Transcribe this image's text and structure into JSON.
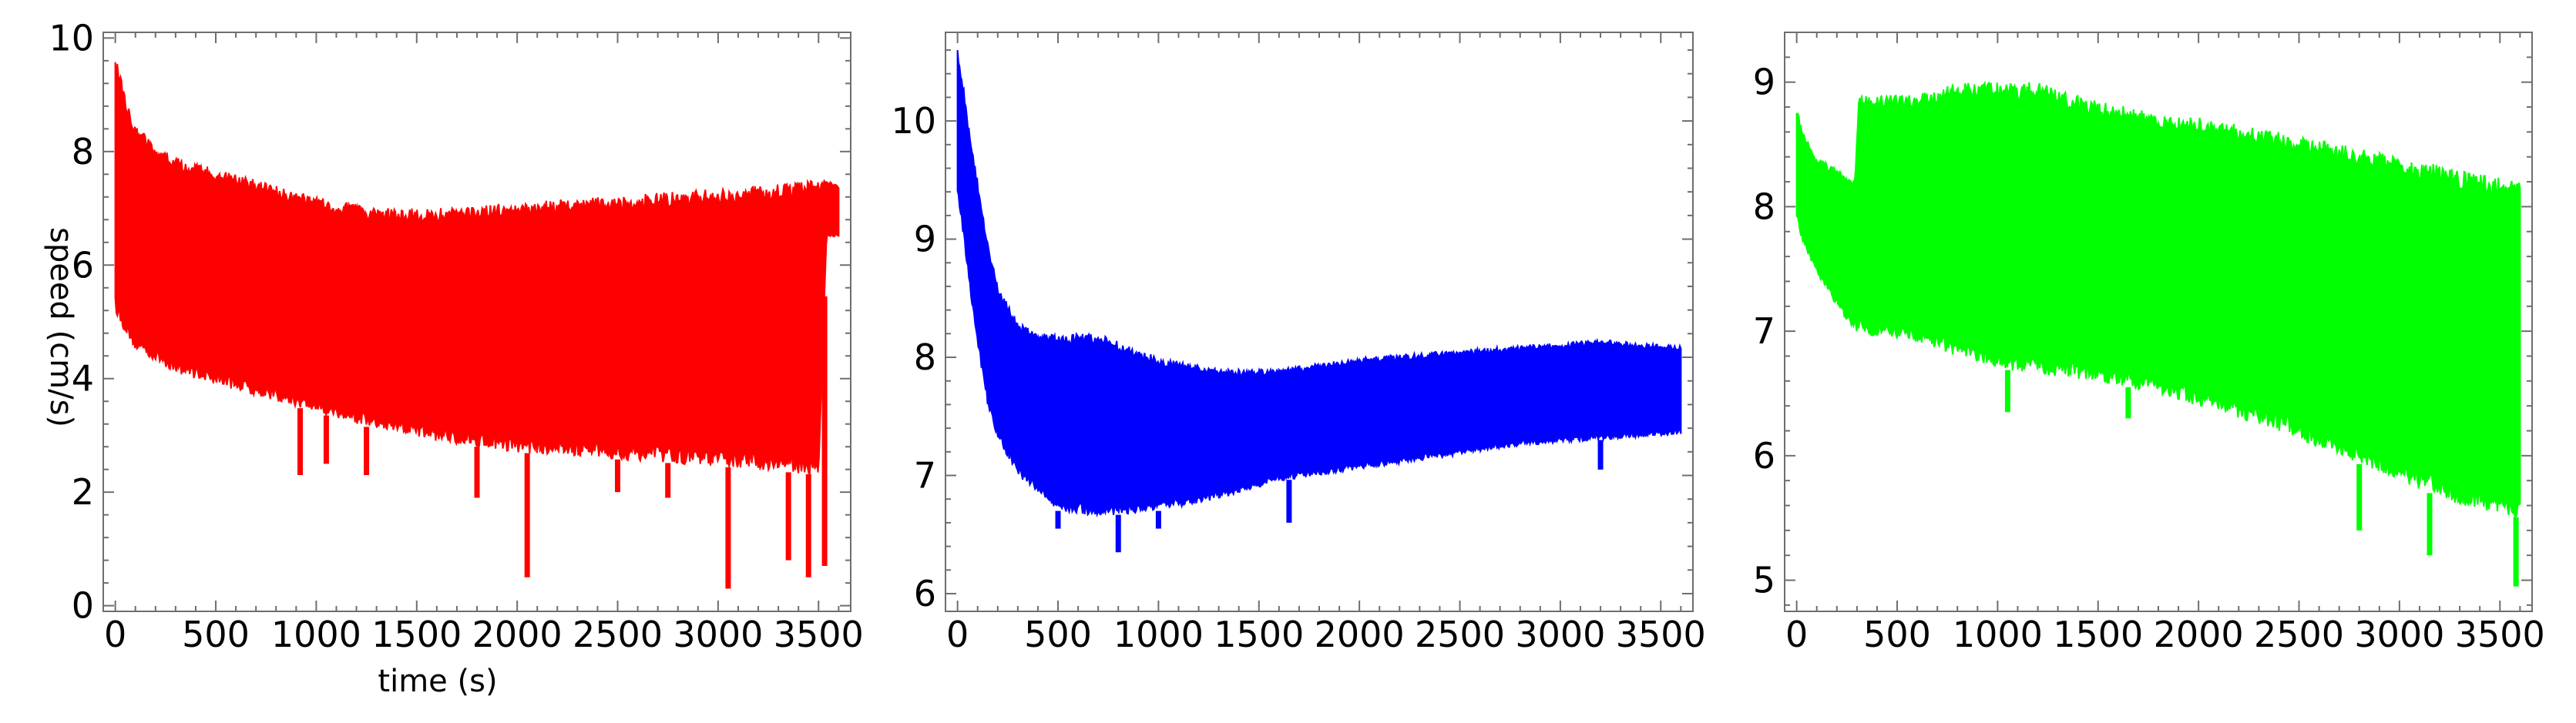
{
  "chart_data": [
    {
      "type": "area",
      "title": "",
      "xlabel": "time (s)",
      "ylabel": "speed (cm/s)",
      "xlim": [
        -60,
        3660
      ],
      "ylim": [
        -0.1,
        10.1
      ],
      "xticks": [
        0,
        500,
        1000,
        1500,
        2000,
        2500,
        3000,
        3500
      ],
      "yticks": [
        0,
        2,
        4,
        6,
        8,
        10
      ],
      "grid": false,
      "series": [
        {
          "color": "#ff0000",
          "x": [
            0,
            20,
            50,
            100,
            200,
            300,
            500,
            700,
            1000,
            1300,
            1600,
            2000,
            2400,
            2800,
            3200,
            3500,
            3540,
            3600
          ],
          "upper": [
            9.6,
            9.5,
            9.0,
            8.5,
            8.1,
            7.9,
            7.7,
            7.5,
            7.2,
            7.0,
            7.0,
            7.1,
            7.2,
            7.3,
            7.4,
            7.5,
            7.5,
            7.4
          ],
          "lower": [
            5.2,
            5.0,
            4.8,
            4.5,
            4.3,
            4.1,
            3.9,
            3.7,
            3.4,
            3.1,
            2.9,
            2.7,
            2.6,
            2.5,
            2.4,
            2.3,
            6.5,
            6.5
          ],
          "dips": [
            [
              920,
              2.3
            ],
            [
              1050,
              2.5
            ],
            [
              1250,
              2.3
            ],
            [
              1800,
              1.9
            ],
            [
              2050,
              0.5
            ],
            [
              2500,
              2.0
            ],
            [
              2750,
              1.9
            ],
            [
              3050,
              0.3
            ],
            [
              3350,
              0.8
            ],
            [
              3450,
              0.5
            ],
            [
              3530,
              0.7
            ]
          ]
        }
      ]
    },
    {
      "type": "area",
      "title": "",
      "xlabel": "",
      "ylabel": "",
      "xlim": [
        -60,
        3660
      ],
      "ylim": [
        5.85,
        10.75
      ],
      "xticks": [
        0,
        500,
        1000,
        1500,
        2000,
        2500,
        3000,
        3500
      ],
      "yticks": [
        6,
        7,
        8,
        9,
        10
      ],
      "grid": false,
      "series": [
        {
          "color": "#0000ff",
          "x": [
            0,
            30,
            60,
            100,
            150,
            200,
            300,
            400,
            500,
            700,
            1000,
            1300,
            1600,
            2000,
            2400,
            2800,
            3200,
            3600
          ],
          "upper": [
            10.6,
            10.3,
            9.9,
            9.5,
            9.0,
            8.6,
            8.3,
            8.2,
            8.2,
            8.2,
            8.0,
            7.9,
            7.9,
            8.0,
            8.05,
            8.1,
            8.15,
            8.1
          ],
          "lower": [
            9.4,
            9.0,
            8.6,
            8.1,
            7.6,
            7.3,
            7.0,
            6.85,
            6.7,
            6.65,
            6.7,
            6.8,
            6.95,
            7.05,
            7.15,
            7.25,
            7.3,
            7.35
          ],
          "dips": [
            [
              500,
              6.55
            ],
            [
              800,
              6.35
            ],
            [
              1000,
              6.55
            ],
            [
              1650,
              6.6
            ],
            [
              3200,
              7.05
            ]
          ]
        }
      ]
    },
    {
      "type": "area",
      "title": "",
      "xlabel": "",
      "ylabel": "",
      "xlim": [
        -60,
        3660
      ],
      "ylim": [
        4.75,
        9.4
      ],
      "xticks": [
        0,
        500,
        1000,
        1500,
        2000,
        2500,
        3000,
        3500
      ],
      "yticks": [
        5,
        6,
        7,
        8,
        9
      ],
      "grid": false,
      "series": [
        {
          "color": "#00ff00",
          "x": [
            0,
            30,
            100,
            200,
            290,
            310,
            400,
            600,
            800,
            1000,
            1200,
            1500,
            1800,
            2100,
            2400,
            2700,
            3000,
            3300,
            3600
          ],
          "upper": [
            8.8,
            8.6,
            8.4,
            8.3,
            8.2,
            8.9,
            8.9,
            8.9,
            9.0,
            9.0,
            9.0,
            8.85,
            8.75,
            8.7,
            8.6,
            8.5,
            8.4,
            8.3,
            8.2
          ],
          "lower": [
            7.9,
            7.7,
            7.45,
            7.2,
            7.0,
            7.0,
            6.95,
            6.9,
            6.8,
            6.7,
            6.65,
            6.6,
            6.5,
            6.35,
            6.2,
            6.0,
            5.8,
            5.6,
            5.5
          ],
          "dips": [
            [
              1050,
              6.35
            ],
            [
              1650,
              6.3
            ],
            [
              2400,
              6.2
            ],
            [
              2800,
              5.4
            ],
            [
              3150,
              5.2
            ],
            [
              3580,
              4.95
            ]
          ]
        }
      ]
    }
  ]
}
